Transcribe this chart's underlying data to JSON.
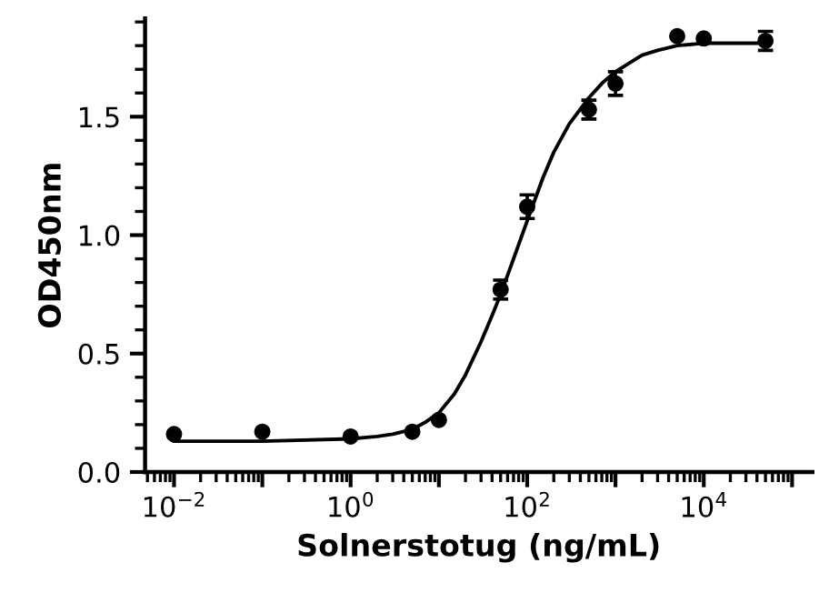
{
  "chart_data": {
    "type": "scatter",
    "xlabel": "Solnerstotug (ng/mL)",
    "ylabel": "OD450nm",
    "log": "x",
    "marker": "circle",
    "grid": false,
    "legend": false,
    "xlim": [
      0.0047,
      170000
    ],
    "ylim": [
      0,
      1.915
    ],
    "xticks": [
      {
        "value": 0.01,
        "label": "10$^{−2}$"
      },
      {
        "value": 0.1,
        "label": null
      },
      {
        "value": 1,
        "label": "10$^{0}$"
      },
      {
        "value": 10,
        "label": null
      },
      {
        "value": 100,
        "label": "10$^{2}$"
      },
      {
        "value": 1000,
        "label": null
      },
      {
        "value": 10000,
        "label": "10$^{4}$"
      },
      {
        "value": 100000,
        "label": null
      }
    ],
    "yticks": [
      {
        "value": 0,
        "label": "0.0"
      },
      0.5,
      {
        "value": 1,
        "label": "1.0"
      },
      1.5
    ],
    "series": [
      {
        "color": "#000000",
        "x": [
          0.01,
          0.1,
          1,
          5,
          10,
          50,
          100,
          500,
          1000,
          5000,
          10000,
          50000
        ],
        "values": [
          0.16,
          0.17,
          0.15,
          0.17,
          0.22,
          0.77,
          1.12,
          1.53,
          1.64,
          1.84,
          1.83,
          1.82
        ],
        "errors": [
          null,
          null,
          null,
          null,
          null,
          0.04,
          0.05,
          0.04,
          0.05,
          null,
          null,
          0.04
        ]
      },
      {
        "type": "line",
        "color": "#000000",
        "marker": "none",
        "line_style": "solid",
        "x": [
          0.01,
          0.1,
          1,
          2,
          3,
          5,
          7,
          10,
          15,
          20,
          30,
          40,
          50,
          70,
          100,
          150,
          200,
          300,
          500,
          700,
          1000,
          2000,
          3000,
          5000,
          10000,
          50000
        ],
        "values": [
          0.13,
          0.13,
          0.14,
          0.15,
          0.16,
          0.18,
          0.21,
          0.25,
          0.33,
          0.41,
          0.55,
          0.66,
          0.75,
          0.9,
          1.06,
          1.24,
          1.35,
          1.47,
          1.58,
          1.64,
          1.69,
          1.76,
          1.78,
          1.8,
          1.81,
          1.81
        ]
      }
    ]
  }
}
